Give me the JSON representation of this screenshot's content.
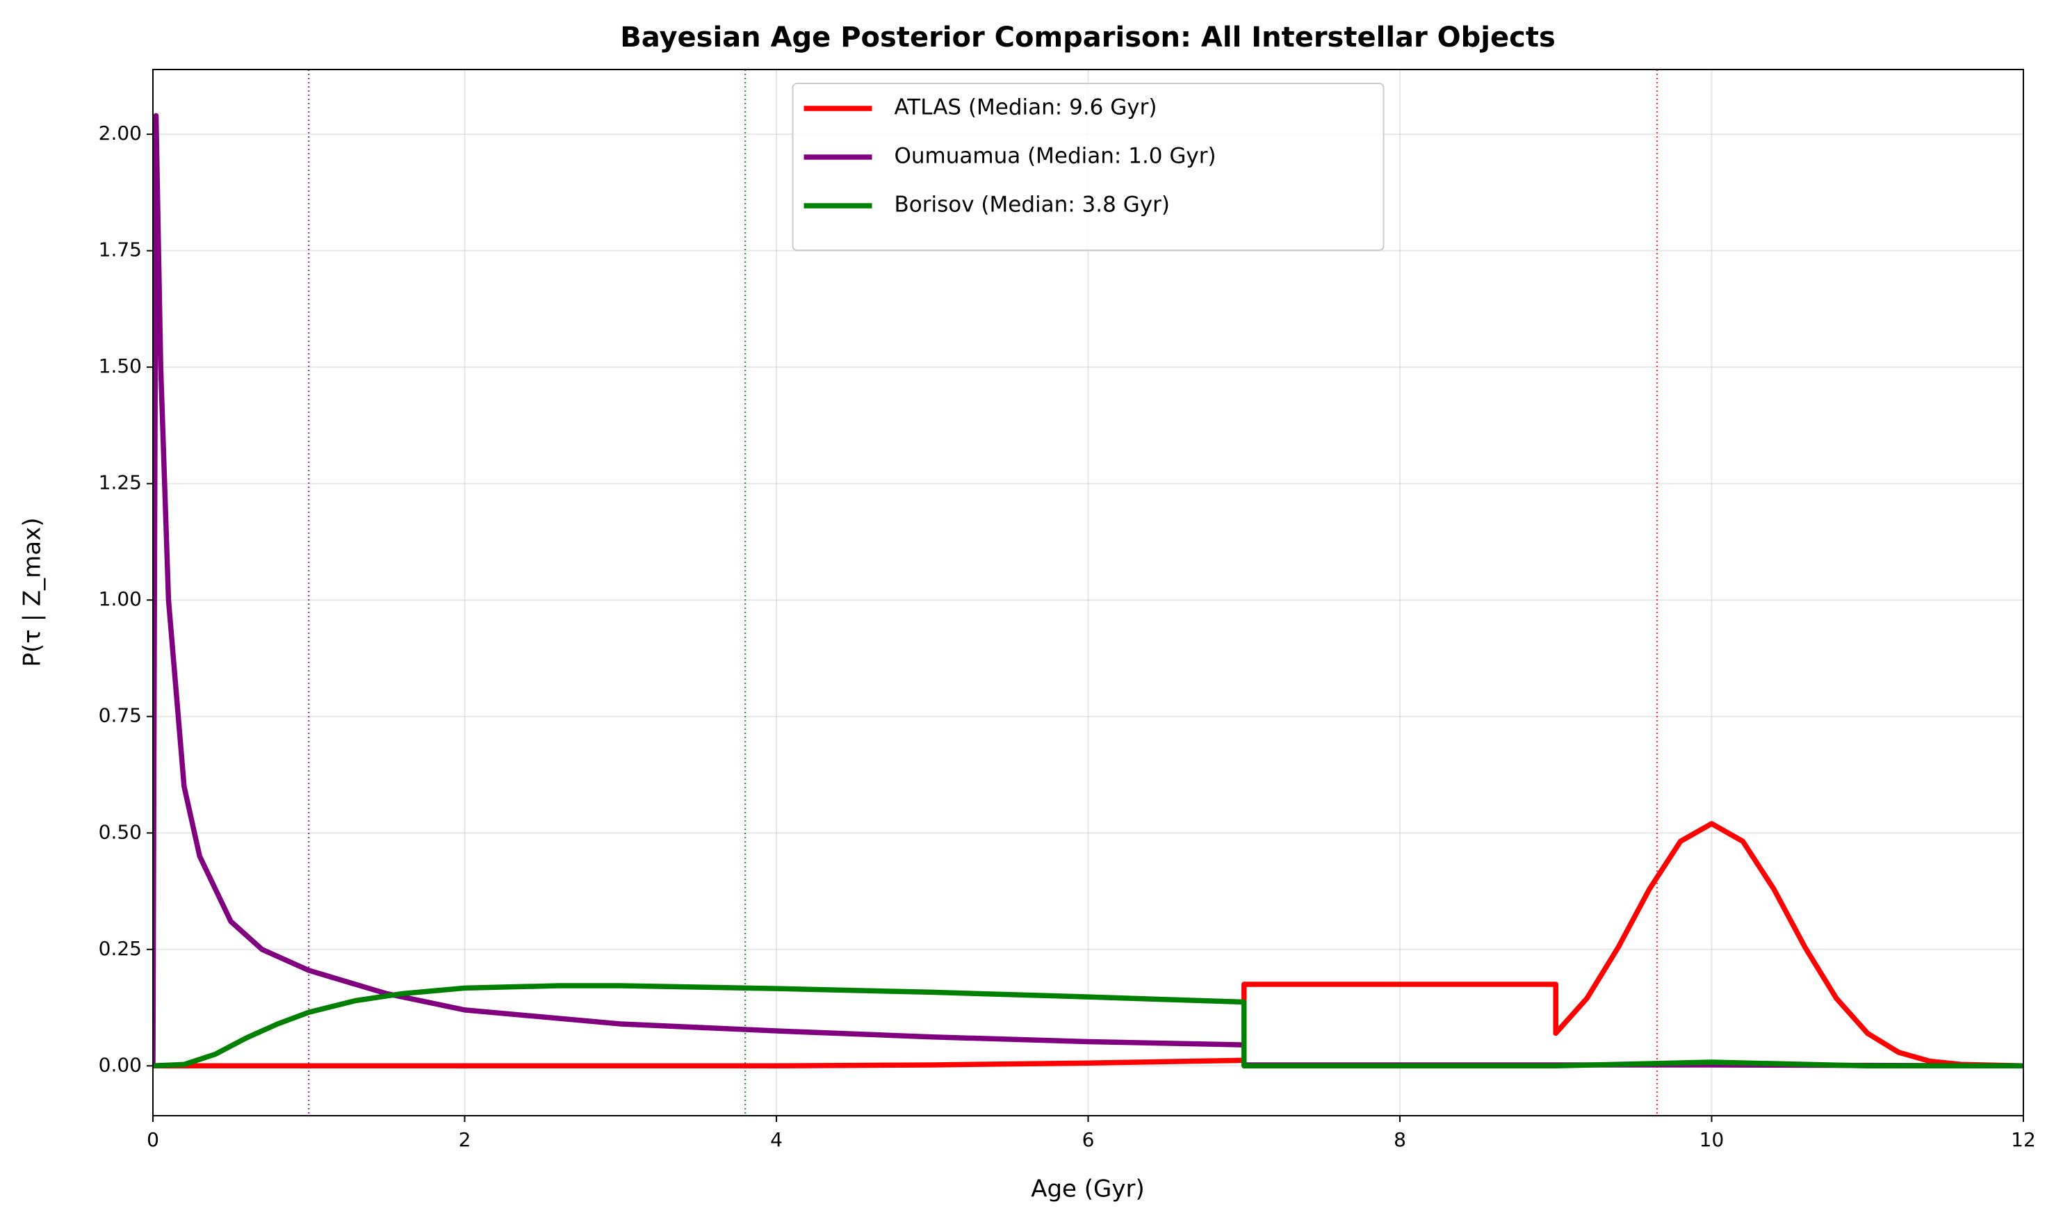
{
  "chart_data": {
    "type": "line",
    "title": "Bayesian Age Posterior Comparison: All Interstellar Objects",
    "xlabel": "Age (Gyr)",
    "ylabel": "P(τ | Z_max)",
    "xlim": [
      0,
      12
    ],
    "ylim": [
      -0.107,
      2.139
    ],
    "xticks": [
      0,
      2,
      4,
      6,
      8,
      10,
      12
    ],
    "yticks": [
      {
        "value": 0,
        "label": "0.00"
      },
      {
        "value": 0.25,
        "label": "0.25"
      },
      {
        "value": 0.5,
        "label": "0.50"
      },
      {
        "value": 0.75,
        "label": "0.75"
      },
      {
        "value": 1,
        "label": "1.00"
      },
      {
        "value": 1.25,
        "label": "1.25"
      },
      {
        "value": 1.5,
        "label": "1.50"
      },
      {
        "value": 1.75,
        "label": "1.75"
      },
      {
        "value": 2,
        "label": "2.00"
      }
    ],
    "grid": true,
    "legend": "upper center",
    "series": [
      {
        "name": "ATLAS (Median: 9.6 Gyr)",
        "color": "#ff0000",
        "median": 9.65,
        "x": [
          0,
          1,
          2,
          3,
          4,
          5,
          6,
          6.5,
          7,
          7,
          9,
          9,
          9.2,
          9.4,
          9.6,
          9.8,
          10,
          10.2,
          10.4,
          10.6,
          10.8,
          11,
          11.2,
          11.4,
          11.6,
          12
        ],
        "values": [
          0,
          0,
          0,
          0,
          0,
          0.002,
          0.006,
          0.009,
          0.012,
          0.175,
          0.175,
          0.07,
          0.145,
          0.254,
          0.379,
          0.482,
          0.52,
          0.482,
          0.379,
          0.254,
          0.145,
          0.07,
          0.029,
          0.01,
          0.003,
          0
        ]
      },
      {
        "name": "Oumuamua (Median: 1.0 Gyr)",
        "color": "#800080",
        "median": 1.0,
        "x": [
          0,
          0.02,
          0.05,
          0.1,
          0.2,
          0.3,
          0.5,
          0.7,
          1,
          1.5,
          2,
          3,
          4,
          5,
          6,
          7,
          7,
          8,
          9,
          10,
          11,
          12
        ],
        "values": [
          0,
          2.04,
          1.5,
          1.0,
          0.6,
          0.45,
          0.31,
          0.25,
          0.205,
          0.155,
          0.12,
          0.09,
          0.075,
          0.062,
          0.052,
          0.045,
          0.002,
          0.002,
          0.002,
          0.002,
          0.001,
          0
        ]
      },
      {
        "name": "Borisov (Median: 3.8 Gyr)",
        "color": "#008000",
        "median": 3.8,
        "x": [
          0,
          0.2,
          0.4,
          0.6,
          0.8,
          1,
          1.3,
          1.6,
          2,
          2.6,
          3,
          4,
          5,
          6,
          7,
          7,
          8,
          9,
          9.5,
          10,
          10.5,
          11,
          12
        ],
        "values": [
          0,
          0.003,
          0.025,
          0.06,
          0.09,
          0.115,
          0.14,
          0.155,
          0.167,
          0.172,
          0.172,
          0.166,
          0.158,
          0.148,
          0.137,
          0,
          0,
          0,
          0.004,
          0.008,
          0.004,
          0,
          0
        ]
      }
    ]
  }
}
